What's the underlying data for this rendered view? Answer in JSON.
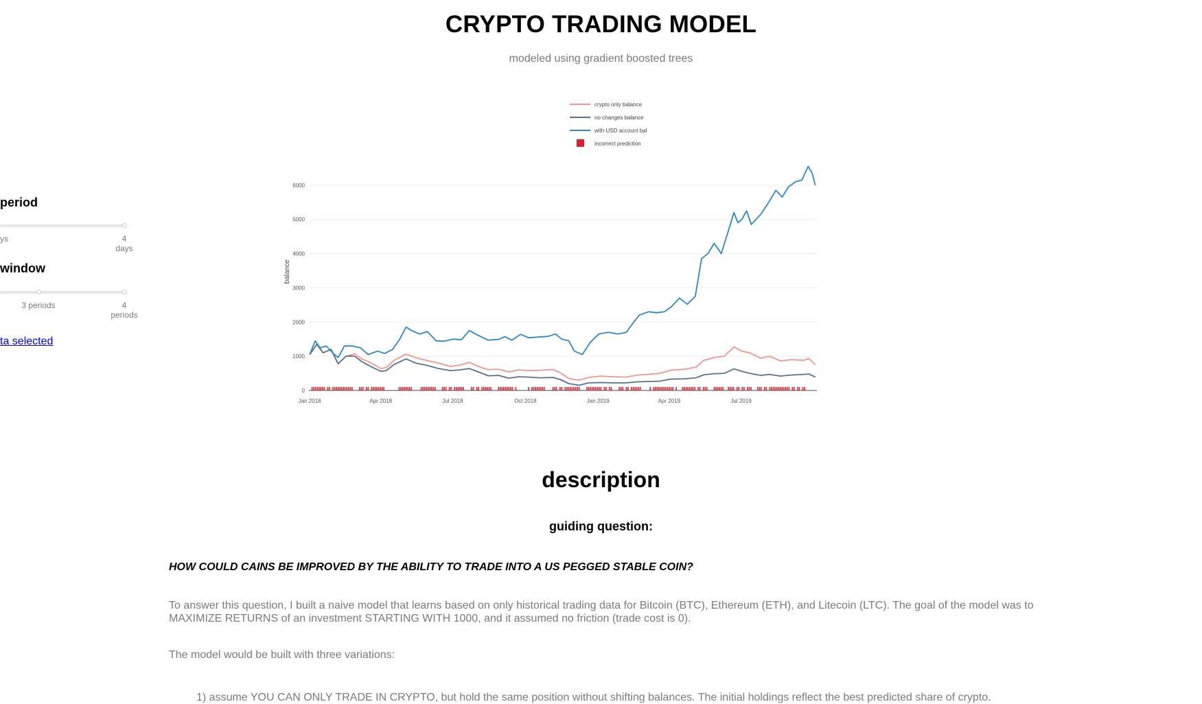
{
  "header": {
    "title": "CRYPTO TRADING MODEL",
    "subtitle": "modeled using gradient boosted trees"
  },
  "sidebar": {
    "period": {
      "label": "period",
      "marks": [
        "ys",
        "4\ndays"
      ]
    },
    "window": {
      "label": "window",
      "marks": [
        "3 periods",
        "4\nperiods"
      ]
    },
    "link_text": "ta selected"
  },
  "chart_data": {
    "type": "line",
    "title": "",
    "xlabel": "",
    "ylabel": "balance",
    "xlim": [
      "2017-12-31",
      "2019-10-05"
    ],
    "ylim": [
      0,
      6800
    ],
    "x_ticks": [
      "Jan 2018",
      "Apr 2018",
      "Jul 2018",
      "Oct 2018",
      "Jan 2019",
      "Apr 2019",
      "Jul 2019"
    ],
    "y_ticks": [
      0,
      1000,
      2000,
      3000,
      4000,
      5000,
      6000
    ],
    "legend_position": "top-center",
    "series": [
      {
        "name": "crypto only balance",
        "color": "#f4948c",
        "points": [
          [
            "2018-01-01",
            1050
          ],
          [
            "2018-01-10",
            1350
          ],
          [
            "2018-01-18",
            1100
          ],
          [
            "2018-01-28",
            1200
          ],
          [
            "2018-02-06",
            780
          ],
          [
            "2018-02-16",
            1000
          ],
          [
            "2018-02-27",
            1070
          ],
          [
            "2018-03-08",
            920
          ],
          [
            "2018-03-20",
            800
          ],
          [
            "2018-04-01",
            640
          ],
          [
            "2018-04-08",
            670
          ],
          [
            "2018-04-18",
            880
          ],
          [
            "2018-05-03",
            1060
          ],
          [
            "2018-05-15",
            960
          ],
          [
            "2018-05-28",
            880
          ],
          [
            "2018-06-13",
            800
          ],
          [
            "2018-06-28",
            700
          ],
          [
            "2018-07-10",
            740
          ],
          [
            "2018-07-22",
            820
          ],
          [
            "2018-08-05",
            680
          ],
          [
            "2018-08-15",
            610
          ],
          [
            "2018-08-28",
            620
          ],
          [
            "2018-09-10",
            540
          ],
          [
            "2018-09-22",
            600
          ],
          [
            "2018-10-05",
            580
          ],
          [
            "2018-10-20",
            590
          ],
          [
            "2018-11-05",
            610
          ],
          [
            "2018-11-14",
            520
          ],
          [
            "2018-11-25",
            350
          ],
          [
            "2018-12-08",
            300
          ],
          [
            "2018-12-20",
            380
          ],
          [
            "2019-01-05",
            420
          ],
          [
            "2019-01-20",
            400
          ],
          [
            "2019-02-05",
            390
          ],
          [
            "2019-02-20",
            450
          ],
          [
            "2019-03-05",
            470
          ],
          [
            "2019-03-20",
            500
          ],
          [
            "2019-04-03",
            590
          ],
          [
            "2019-04-20",
            620
          ],
          [
            "2019-05-05",
            680
          ],
          [
            "2019-05-15",
            880
          ],
          [
            "2019-05-28",
            960
          ],
          [
            "2019-06-10",
            1000
          ],
          [
            "2019-06-22",
            1270
          ],
          [
            "2019-07-02",
            1150
          ],
          [
            "2019-07-12",
            1100
          ],
          [
            "2019-07-26",
            940
          ],
          [
            "2019-08-06",
            1000
          ],
          [
            "2019-08-20",
            860
          ],
          [
            "2019-09-02",
            900
          ],
          [
            "2019-09-18",
            880
          ],
          [
            "2019-09-25",
            930
          ],
          [
            "2019-10-03",
            750
          ]
        ]
      },
      {
        "name": "no changes balance",
        "color": "#5a6f8d",
        "points": [
          [
            "2018-01-01",
            1050
          ],
          [
            "2018-01-10",
            1350
          ],
          [
            "2018-01-18",
            1100
          ],
          [
            "2018-01-28",
            1200
          ],
          [
            "2018-02-06",
            780
          ],
          [
            "2018-02-16",
            1000
          ],
          [
            "2018-02-27",
            1000
          ],
          [
            "2018-03-08",
            840
          ],
          [
            "2018-03-20",
            690
          ],
          [
            "2018-04-01",
            560
          ],
          [
            "2018-04-08",
            580
          ],
          [
            "2018-04-18",
            760
          ],
          [
            "2018-05-03",
            920
          ],
          [
            "2018-05-15",
            800
          ],
          [
            "2018-05-28",
            740
          ],
          [
            "2018-06-13",
            640
          ],
          [
            "2018-06-28",
            580
          ],
          [
            "2018-07-10",
            600
          ],
          [
            "2018-07-22",
            640
          ],
          [
            "2018-08-05",
            520
          ],
          [
            "2018-08-15",
            430
          ],
          [
            "2018-08-28",
            440
          ],
          [
            "2018-09-10",
            360
          ],
          [
            "2018-09-22",
            400
          ],
          [
            "2018-10-05",
            390
          ],
          [
            "2018-10-20",
            370
          ],
          [
            "2018-11-05",
            380
          ],
          [
            "2018-11-14",
            320
          ],
          [
            "2018-11-25",
            200
          ],
          [
            "2018-12-08",
            150
          ],
          [
            "2018-12-20",
            220
          ],
          [
            "2019-01-05",
            230
          ],
          [
            "2019-01-20",
            220
          ],
          [
            "2019-02-05",
            220
          ],
          [
            "2019-02-20",
            250
          ],
          [
            "2019-03-05",
            260
          ],
          [
            "2019-03-20",
            270
          ],
          [
            "2019-04-03",
            330
          ],
          [
            "2019-04-20",
            340
          ],
          [
            "2019-05-05",
            370
          ],
          [
            "2019-05-15",
            460
          ],
          [
            "2019-05-28",
            490
          ],
          [
            "2019-06-10",
            500
          ],
          [
            "2019-06-22",
            630
          ],
          [
            "2019-07-02",
            560
          ],
          [
            "2019-07-12",
            500
          ],
          [
            "2019-07-26",
            440
          ],
          [
            "2019-08-06",
            470
          ],
          [
            "2019-08-20",
            420
          ],
          [
            "2019-09-02",
            450
          ],
          [
            "2019-09-18",
            470
          ],
          [
            "2019-09-25",
            480
          ],
          [
            "2019-10-03",
            390
          ]
        ]
      },
      {
        "name": "with USD account bal",
        "color": "#2f86c8",
        "points": [
          [
            "2018-01-01",
            1050
          ],
          [
            "2018-01-08",
            1450
          ],
          [
            "2018-01-14",
            1250
          ],
          [
            "2018-01-22",
            1300
          ],
          [
            "2018-01-30",
            1100
          ],
          [
            "2018-02-06",
            960
          ],
          [
            "2018-02-14",
            1300
          ],
          [
            "2018-02-24",
            1300
          ],
          [
            "2018-03-06",
            1250
          ],
          [
            "2018-03-16",
            1050
          ],
          [
            "2018-03-28",
            1150
          ],
          [
            "2018-04-06",
            1080
          ],
          [
            "2018-04-16",
            1200
          ],
          [
            "2018-04-25",
            1500
          ],
          [
            "2018-05-03",
            1850
          ],
          [
            "2018-05-10",
            1750
          ],
          [
            "2018-05-20",
            1650
          ],
          [
            "2018-05-30",
            1720
          ],
          [
            "2018-06-10",
            1450
          ],
          [
            "2018-06-20",
            1440
          ],
          [
            "2018-07-02",
            1500
          ],
          [
            "2018-07-12",
            1480
          ],
          [
            "2018-07-22",
            1750
          ],
          [
            "2018-08-03",
            1600
          ],
          [
            "2018-08-15",
            1470
          ],
          [
            "2018-08-28",
            1490
          ],
          [
            "2018-09-05",
            1570
          ],
          [
            "2018-09-14",
            1470
          ],
          [
            "2018-09-25",
            1640
          ],
          [
            "2018-10-05",
            1540
          ],
          [
            "2018-10-18",
            1560
          ],
          [
            "2018-10-30",
            1580
          ],
          [
            "2018-11-08",
            1650
          ],
          [
            "2018-11-16",
            1500
          ],
          [
            "2018-11-25",
            1450
          ],
          [
            "2018-12-02",
            1150
          ],
          [
            "2018-12-12",
            1050
          ],
          [
            "2018-12-22",
            1400
          ],
          [
            "2019-01-02",
            1650
          ],
          [
            "2019-01-14",
            1700
          ],
          [
            "2019-01-26",
            1650
          ],
          [
            "2019-02-06",
            1700
          ],
          [
            "2019-02-12",
            1900
          ],
          [
            "2019-02-22",
            2200
          ],
          [
            "2019-03-06",
            2300
          ],
          [
            "2019-03-16",
            2270
          ],
          [
            "2019-03-26",
            2300
          ],
          [
            "2019-04-04",
            2450
          ],
          [
            "2019-04-14",
            2700
          ],
          [
            "2019-04-24",
            2520
          ],
          [
            "2019-05-04",
            2750
          ],
          [
            "2019-05-08",
            3300
          ],
          [
            "2019-05-12",
            3850
          ],
          [
            "2019-05-20",
            4000
          ],
          [
            "2019-05-28",
            4300
          ],
          [
            "2019-06-06",
            4000
          ],
          [
            "2019-06-14",
            4600
          ],
          [
            "2019-06-22",
            5200
          ],
          [
            "2019-06-27",
            4900
          ],
          [
            "2019-07-02",
            5000
          ],
          [
            "2019-07-08",
            5250
          ],
          [
            "2019-07-14",
            4850
          ],
          [
            "2019-07-26",
            5150
          ],
          [
            "2019-08-05",
            5500
          ],
          [
            "2019-08-14",
            5850
          ],
          [
            "2019-08-22",
            5650
          ],
          [
            "2019-08-30",
            5950
          ],
          [
            "2019-09-08",
            6100
          ],
          [
            "2019-09-16",
            6150
          ],
          [
            "2019-09-24",
            6550
          ],
          [
            "2019-09-29",
            6350
          ],
          [
            "2019-10-03",
            6000
          ]
        ]
      }
    ],
    "marker_series": {
      "name": "incorrect prediction",
      "color": "#d6202d",
      "ranges": [
        [
          "2018-01-04",
          "2018-02-25"
        ],
        [
          "2018-03-05",
          "2018-04-05"
        ],
        [
          "2018-04-22",
          "2018-05-10"
        ],
        [
          "2018-05-20",
          "2018-06-10"
        ],
        [
          "2018-06-18",
          "2018-07-15"
        ],
        [
          "2018-07-25",
          "2018-08-20"
        ],
        [
          "2018-08-28",
          "2018-09-20"
        ],
        [
          "2018-10-05",
          "2018-10-25"
        ],
        [
          "2018-11-05",
          "2018-12-10"
        ],
        [
          "2018-12-18",
          "2019-01-20"
        ],
        [
          "2019-01-28",
          "2019-02-25"
        ],
        [
          "2019-03-08",
          "2019-04-10"
        ],
        [
          "2019-04-18",
          "2019-05-20"
        ],
        [
          "2019-05-28",
          "2019-06-10"
        ],
        [
          "2019-06-15",
          "2019-07-15"
        ],
        [
          "2019-07-22",
          "2019-09-20"
        ]
      ]
    }
  },
  "description": {
    "heading": "description",
    "guiding": "guiding question:",
    "question": "HOW COULD CAINS BE IMPROVED BY THE ABILITY TO TRADE INTO A US PEGGED STABLE COIN?",
    "paragraph1": "To answer this question, I built a naive model that learns based on only historical trading data for Bitcoin (BTC), Ethereum (ETH), and Litecoin (LTC). The goal of the model was to MAXIMIZE RETURNS of an investment STARTING WITH 1000, and it assumed no friction (trade cost is 0).",
    "paragraph2": "The model would be built with three variations:",
    "list_item1": "1) assume YOU CAN ONLY TRADE IN CRYPTO, but hold the same position without shifting balances. The initial holdings reflect the best predicted share of crypto."
  }
}
